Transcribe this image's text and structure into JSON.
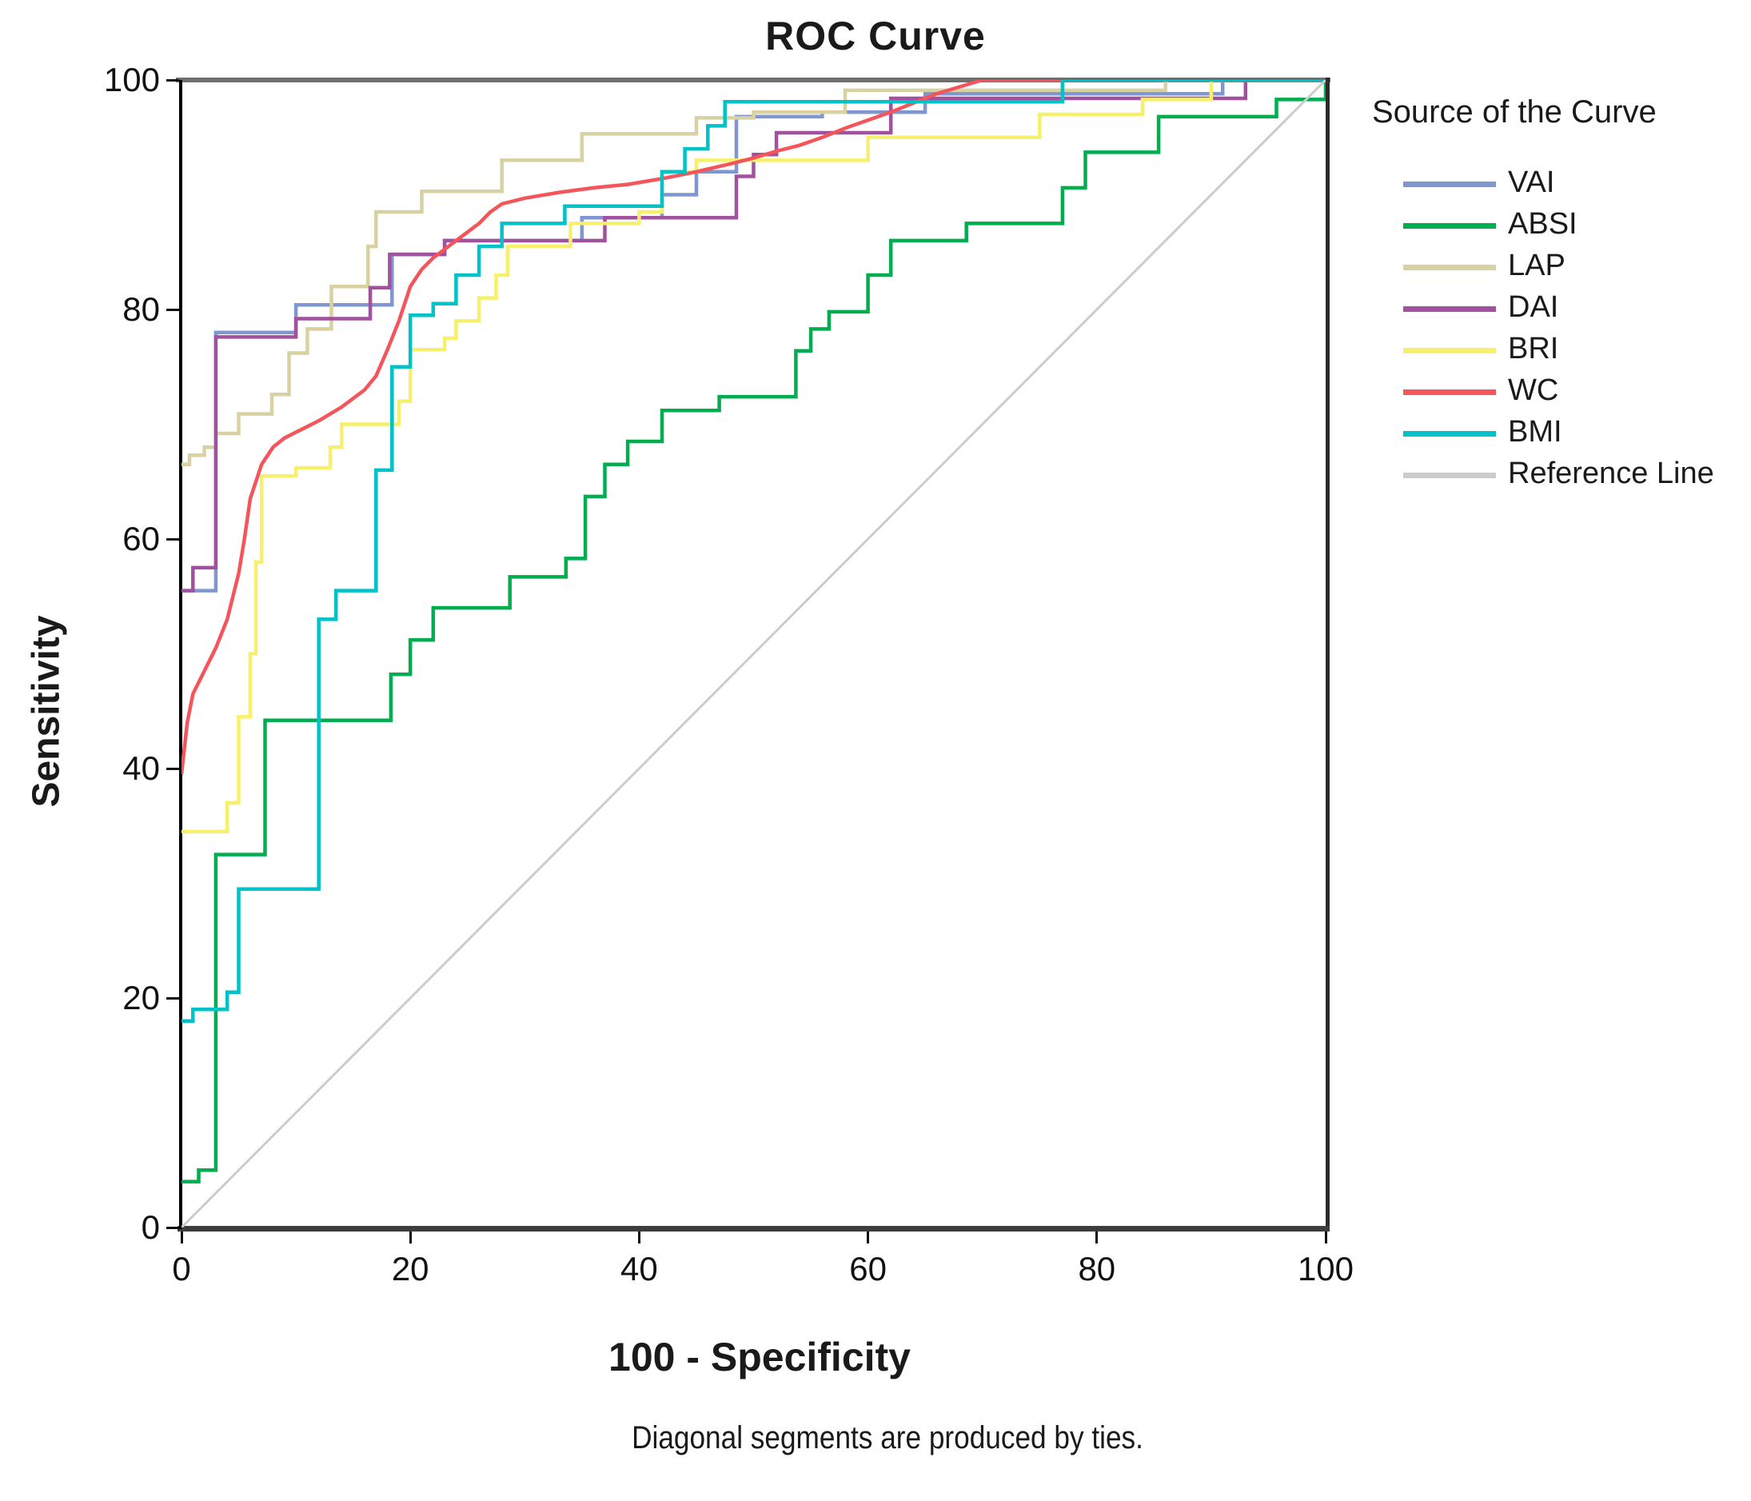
{
  "title": "ROC Curve",
  "footnote": "Diagonal segments are produced by ties.",
  "legend": {
    "title": "Source of the Curve"
  },
  "axes": {
    "x": {
      "label": "100 - Specificity",
      "ticks": [
        0,
        20,
        40,
        60,
        80,
        100
      ]
    },
    "y": {
      "label": "Sensitivity",
      "ticks": [
        0,
        20,
        40,
        60,
        80,
        100
      ]
    }
  },
  "colors": {
    "frame_top": "#6f6f6f",
    "axis": "#111111",
    "text": "#1a1a1a"
  },
  "chart_data": {
    "type": "line",
    "title": "ROC Curve",
    "xlabel": "100 - Specificity",
    "ylabel": "Sensitivity",
    "xlim": [
      0,
      100
    ],
    "ylim": [
      0,
      100
    ],
    "grid": false,
    "legend_position": "right",
    "legend_title": "Source of the Curve",
    "series": [
      {
        "name": "VAI",
        "color": "#8096d0",
        "width": 4.5,
        "points": [
          [
            0,
            55.5
          ],
          [
            3,
            55.5
          ],
          [
            3,
            78
          ],
          [
            10,
            78
          ],
          [
            10,
            80.4
          ],
          [
            18.4,
            80.4
          ],
          [
            18.4,
            84.8
          ],
          [
            23,
            84.8
          ],
          [
            23,
            86
          ],
          [
            35,
            86
          ],
          [
            35,
            88
          ],
          [
            42,
            88
          ],
          [
            42,
            90
          ],
          [
            45,
            90
          ],
          [
            45,
            92
          ],
          [
            48.5,
            92
          ],
          [
            48.5,
            96.8
          ],
          [
            56,
            96.8
          ],
          [
            56,
            97.2
          ],
          [
            65,
            97.2
          ],
          [
            65,
            98.8
          ],
          [
            91,
            98.8
          ],
          [
            91,
            100
          ],
          [
            100,
            100
          ]
        ]
      },
      {
        "name": "ABSI",
        "color": "#00ad4f",
        "width": 4.5,
        "points": [
          [
            0,
            4
          ],
          [
            1.5,
            4
          ],
          [
            1.5,
            5
          ],
          [
            3,
            5
          ],
          [
            3,
            32.5
          ],
          [
            7.3,
            32.5
          ],
          [
            7.3,
            44.2
          ],
          [
            18.3,
            44.2
          ],
          [
            18.3,
            48.2
          ],
          [
            20,
            48.2
          ],
          [
            20,
            51.2
          ],
          [
            22,
            51.2
          ],
          [
            22,
            54
          ],
          [
            28.7,
            54
          ],
          [
            28.7,
            56.7
          ],
          [
            33.6,
            56.7
          ],
          [
            33.6,
            58.3
          ],
          [
            35.3,
            58.3
          ],
          [
            35.3,
            63.7
          ],
          [
            37,
            63.7
          ],
          [
            37,
            66.5
          ],
          [
            39,
            66.5
          ],
          [
            39,
            68.5
          ],
          [
            42,
            68.5
          ],
          [
            42,
            71.2
          ],
          [
            47,
            71.2
          ],
          [
            47,
            72.4
          ],
          [
            53.7,
            72.4
          ],
          [
            53.7,
            76.4
          ],
          [
            55,
            76.4
          ],
          [
            55,
            78.3
          ],
          [
            56.6,
            78.3
          ],
          [
            56.6,
            79.8
          ],
          [
            60,
            79.8
          ],
          [
            60,
            83
          ],
          [
            62,
            83
          ],
          [
            62,
            86
          ],
          [
            68.6,
            86
          ],
          [
            68.6,
            87.5
          ],
          [
            77,
            87.5
          ],
          [
            77,
            90.6
          ],
          [
            79,
            90.6
          ],
          [
            79,
            93.7
          ],
          [
            85.4,
            93.7
          ],
          [
            85.4,
            96.8
          ],
          [
            95.7,
            96.8
          ],
          [
            95.7,
            98.3
          ],
          [
            100,
            98.3
          ],
          [
            100,
            100
          ]
        ]
      },
      {
        "name": "LAP",
        "color": "#d8d1a2",
        "width": 4.5,
        "points": [
          [
            0,
            66.5
          ],
          [
            0.7,
            66.5
          ],
          [
            0.7,
            67.3
          ],
          [
            2,
            67.3
          ],
          [
            2,
            68
          ],
          [
            3,
            68
          ],
          [
            3,
            69.2
          ],
          [
            5,
            69.2
          ],
          [
            5,
            70.9
          ],
          [
            7.9,
            70.9
          ],
          [
            7.9,
            72.6
          ],
          [
            9.4,
            72.6
          ],
          [
            9.4,
            76.2
          ],
          [
            11,
            76.2
          ],
          [
            11,
            78.3
          ],
          [
            13.1,
            78.3
          ],
          [
            13.1,
            82
          ],
          [
            16.3,
            82
          ],
          [
            16.3,
            85.5
          ],
          [
            17,
            85.5
          ],
          [
            17,
            88.5
          ],
          [
            21,
            88.5
          ],
          [
            21,
            90.3
          ],
          [
            28,
            90.3
          ],
          [
            28,
            93
          ],
          [
            35,
            93
          ],
          [
            35,
            95.3
          ],
          [
            45,
            95.3
          ],
          [
            45,
            96.7
          ],
          [
            50,
            96.7
          ],
          [
            50,
            97.2
          ],
          [
            58,
            97.2
          ],
          [
            58,
            99.1
          ],
          [
            86,
            99.1
          ],
          [
            86,
            100
          ],
          [
            100,
            100
          ]
        ]
      },
      {
        "name": "DAI",
        "color": "#a1519e",
        "width": 4.5,
        "points": [
          [
            0,
            55.5
          ],
          [
            1,
            55.5
          ],
          [
            1,
            57.5
          ],
          [
            3,
            57.5
          ],
          [
            3,
            77.6
          ],
          [
            10,
            77.6
          ],
          [
            10,
            79.2
          ],
          [
            16.5,
            79.2
          ],
          [
            16.5,
            81.9
          ],
          [
            18.2,
            81.9
          ],
          [
            18.2,
            84.8
          ],
          [
            23,
            84.8
          ],
          [
            23,
            86
          ],
          [
            37,
            86
          ],
          [
            37,
            88
          ],
          [
            48.5,
            88
          ],
          [
            48.5,
            91.6
          ],
          [
            50,
            91.6
          ],
          [
            50,
            93.5
          ],
          [
            52,
            93.5
          ],
          [
            52,
            95.4
          ],
          [
            62,
            95.4
          ],
          [
            62,
            98.4
          ],
          [
            93,
            98.4
          ],
          [
            93,
            100
          ],
          [
            100,
            100
          ]
        ]
      },
      {
        "name": "BRI",
        "color": "#f7f06c",
        "width": 4.5,
        "points": [
          [
            0,
            34.5
          ],
          [
            4,
            34.5
          ],
          [
            4,
            37
          ],
          [
            5,
            37
          ],
          [
            5,
            44.5
          ],
          [
            6,
            44.5
          ],
          [
            6,
            50
          ],
          [
            6.5,
            50
          ],
          [
            6.5,
            58
          ],
          [
            7,
            58
          ],
          [
            7,
            65.5
          ],
          [
            10,
            65.5
          ],
          [
            10,
            66.2
          ],
          [
            13,
            66.2
          ],
          [
            13,
            68
          ],
          [
            14,
            68
          ],
          [
            14,
            70
          ],
          [
            19,
            70
          ],
          [
            19,
            72
          ],
          [
            20,
            72
          ],
          [
            20,
            76.5
          ],
          [
            23,
            76.5
          ],
          [
            23,
            77.5
          ],
          [
            24,
            77.5
          ],
          [
            24,
            79
          ],
          [
            26,
            79
          ],
          [
            26,
            81
          ],
          [
            27.5,
            81
          ],
          [
            27.5,
            83
          ],
          [
            28.5,
            83
          ],
          [
            28.5,
            85.5
          ],
          [
            34,
            85.5
          ],
          [
            34,
            87.5
          ],
          [
            40,
            87.5
          ],
          [
            40,
            88.5
          ],
          [
            42,
            88.5
          ],
          [
            42,
            92
          ],
          [
            45,
            92
          ],
          [
            45,
            93
          ],
          [
            60,
            93
          ],
          [
            60,
            95
          ],
          [
            75,
            95
          ],
          [
            75,
            97
          ],
          [
            84,
            97
          ],
          [
            84,
            98.3
          ],
          [
            90,
            98.3
          ],
          [
            90,
            100
          ],
          [
            100,
            100
          ]
        ]
      },
      {
        "name": "WC",
        "color": "#f4555b",
        "width": 4.5,
        "points": [
          [
            0,
            39.5
          ],
          [
            0.5,
            44
          ],
          [
            1,
            46.5
          ],
          [
            2,
            48.5
          ],
          [
            3,
            50.5
          ],
          [
            4,
            53
          ],
          [
            5,
            57
          ],
          [
            5.5,
            60
          ],
          [
            6,
            63.5
          ],
          [
            7,
            66.5
          ],
          [
            8,
            68
          ],
          [
            9,
            68.8
          ],
          [
            10,
            69.3
          ],
          [
            12,
            70.3
          ],
          [
            14,
            71.5
          ],
          [
            16,
            73
          ],
          [
            17,
            74.2
          ],
          [
            18,
            76.5
          ],
          [
            19,
            79
          ],
          [
            20,
            82
          ],
          [
            21,
            83.5
          ],
          [
            22,
            84.5
          ],
          [
            24,
            86
          ],
          [
            26,
            87.5
          ],
          [
            27,
            88.5
          ],
          [
            28,
            89.2
          ],
          [
            30,
            89.7
          ],
          [
            33,
            90.2
          ],
          [
            36,
            90.6
          ],
          [
            39,
            90.9
          ],
          [
            42,
            91.4
          ],
          [
            45,
            92
          ],
          [
            48,
            92.7
          ],
          [
            50,
            93.2
          ],
          [
            52,
            93.8
          ],
          [
            54,
            94.3
          ],
          [
            56,
            95
          ],
          [
            58,
            95.8
          ],
          [
            60,
            96.5
          ],
          [
            62,
            97.2
          ],
          [
            64,
            98
          ],
          [
            66,
            98.8
          ],
          [
            68,
            99.4
          ],
          [
            70,
            100
          ],
          [
            100,
            100
          ]
        ]
      },
      {
        "name": "BMI",
        "color": "#00c2c7",
        "width": 4.5,
        "points": [
          [
            0,
            18
          ],
          [
            1,
            18
          ],
          [
            1,
            19
          ],
          [
            4,
            19
          ],
          [
            4,
            20.5
          ],
          [
            5,
            20.5
          ],
          [
            5,
            29.5
          ],
          [
            12,
            29.5
          ],
          [
            12,
            53
          ],
          [
            13.5,
            53
          ],
          [
            13.5,
            55.5
          ],
          [
            17,
            55.5
          ],
          [
            17,
            66
          ],
          [
            18.4,
            66
          ],
          [
            18.4,
            75
          ],
          [
            20,
            75
          ],
          [
            20,
            79.5
          ],
          [
            22,
            79.5
          ],
          [
            22,
            80.5
          ],
          [
            24,
            80.5
          ],
          [
            24,
            83
          ],
          [
            26,
            83
          ],
          [
            26,
            85.5
          ],
          [
            28,
            85.5
          ],
          [
            28,
            87.5
          ],
          [
            33.5,
            87.5
          ],
          [
            33.5,
            89
          ],
          [
            42,
            89
          ],
          [
            42,
            92
          ],
          [
            44,
            92
          ],
          [
            44,
            94
          ],
          [
            46,
            94
          ],
          [
            46,
            96
          ],
          [
            47.5,
            96
          ],
          [
            47.5,
            98.1
          ],
          [
            77,
            98.1
          ],
          [
            77,
            100
          ],
          [
            100,
            100
          ]
        ]
      },
      {
        "name": "Reference Line",
        "color": "#cccccc",
        "width": 3,
        "points": [
          [
            0,
            0
          ],
          [
            100,
            100
          ]
        ]
      }
    ]
  }
}
